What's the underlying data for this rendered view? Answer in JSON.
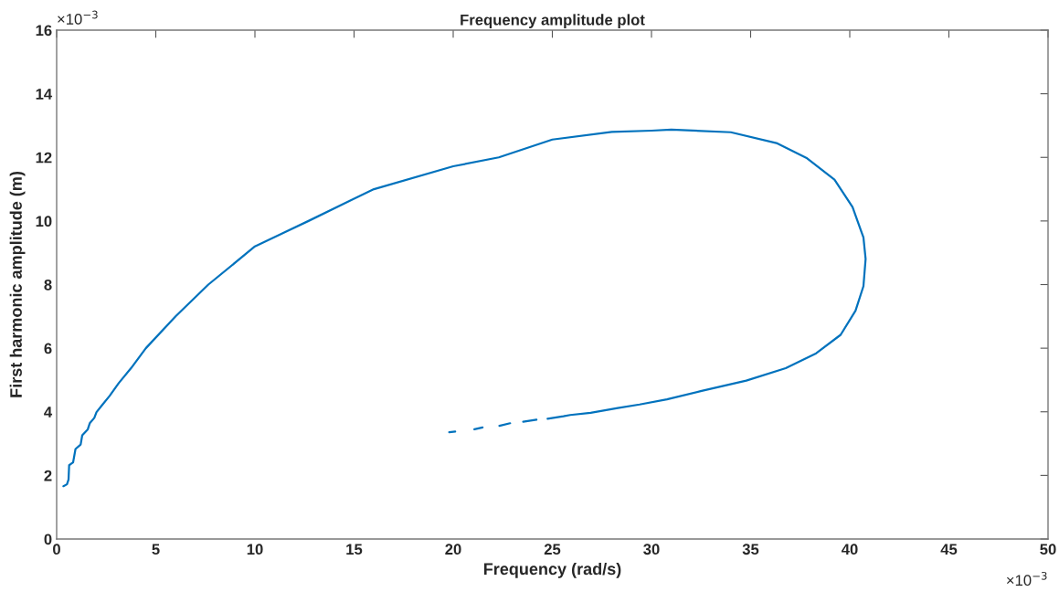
{
  "chart_data": {
    "type": "line",
    "title": "Frequency amplitude plot",
    "xlabel": "Frequency (rad/s)",
    "ylabel": "First harmonic amplitude (m)",
    "annotations": [
      "×10$^{−3}$",
      "×10$^{−3}$"
    ],
    "xlim": [
      0,
      50
    ],
    "xticks": [
      0,
      5,
      10,
      15,
      20,
      25,
      30,
      35,
      40,
      45,
      50
    ],
    "ylim": [
      0,
      16
    ],
    "yticks": [
      0,
      2,
      4,
      6,
      8,
      10,
      12,
      14,
      16
    ],
    "grid": false,
    "legend": false,
    "marker": "none",
    "line_style": "solid",
    "series": [
      {
        "color": "#0072bd",
        "x": [
          0.34,
          0.52,
          0.6,
          0.63,
          0.83,
          0.95,
          1.21,
          1.29,
          1.57,
          1.67,
          1.9,
          2.01,
          2.29,
          2.67,
          3.13,
          3.75,
          4.5,
          6.0,
          7.65,
          10.0,
          12.7,
          15.0,
          16.0,
          20.0,
          22.3,
          25.0,
          28.0,
          30.0,
          31.0,
          34.0,
          36.3,
          37.85,
          39.23,
          40.14,
          40.69,
          40.8,
          40.69,
          40.29,
          39.54,
          38.31,
          36.77,
          34.78,
          32.48,
          30.78,
          29.4,
          28.3,
          26.93,
          25.9,
          25.56,
          24.76,
          null,
          24.2,
          23.53,
          null,
          22.87,
          22.33,
          null,
          21.48,
          21.07,
          null,
          20.1,
          19.8
        ],
        "values": [
          1.66,
          1.72,
          1.87,
          2.32,
          2.41,
          2.83,
          2.97,
          3.26,
          3.45,
          3.64,
          3.81,
          3.99,
          4.21,
          4.5,
          4.9,
          5.37,
          6.0,
          7.0,
          8.0,
          9.2,
          10.0,
          10.7,
          11.0,
          11.72,
          12.0,
          12.56,
          12.8,
          12.84,
          12.87,
          12.79,
          12.45,
          11.97,
          11.3,
          10.44,
          9.48,
          8.81,
          7.95,
          7.18,
          6.42,
          5.84,
          5.37,
          4.98,
          4.65,
          4.39,
          4.23,
          4.12,
          3.97,
          3.9,
          3.86,
          3.78,
          null,
          3.75,
          3.69,
          null,
          3.64,
          3.56,
          null,
          3.51,
          3.45,
          null,
          3.38,
          3.36
        ]
      }
    ]
  }
}
